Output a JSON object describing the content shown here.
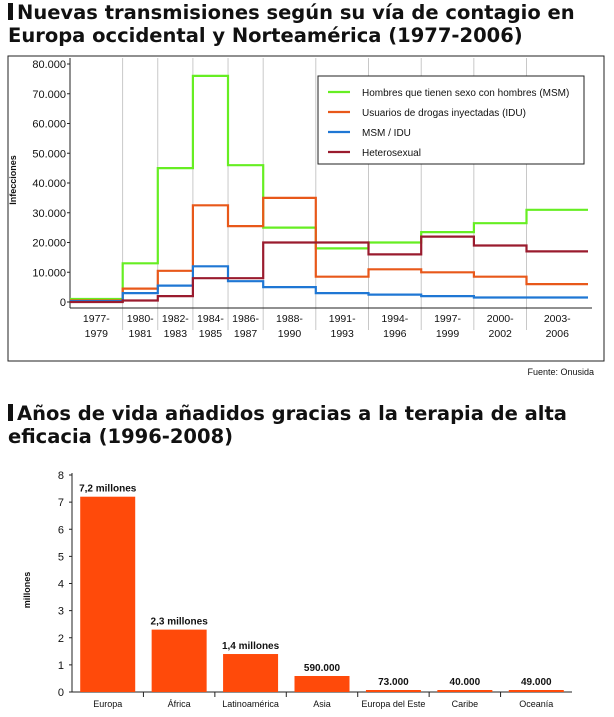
{
  "title1": "Nuevas transmisiones según su vía de contagio en Europa occidental y Norteamérica (1977-2006)",
  "source": "Fuente: Onusida",
  "title2": "Años de vida añadidos gracias a la terapia de alta eficacia (1996-2008)",
  "colors": {
    "msm": "#66ee22",
    "idu": "#e8581a",
    "msmidu": "#1f77d4",
    "hetero": "#9a1b2e",
    "bar": "#ff4a0a"
  },
  "chart_data": [
    {
      "type": "line",
      "step": true,
      "title": "Nuevas transmisiones según su vía de contagio en Europa occidental y Norteamérica (1977-2006)",
      "ylabel": "Infecciones",
      "ylim": [
        0,
        80000
      ],
      "yticks": [
        0,
        10000,
        20000,
        30000,
        40000,
        50000,
        60000,
        70000,
        80000
      ],
      "ytick_labels": [
        "0",
        "10.000",
        "20.000",
        "30.000",
        "40.000",
        "50.000",
        "60.000",
        "70.000",
        "80.000"
      ],
      "categories": [
        [
          "1977-",
          "1979"
        ],
        [
          "1980-",
          "1981"
        ],
        [
          "1982-",
          "1983"
        ],
        [
          "1984-",
          "1985"
        ],
        [
          "1986-",
          "1987"
        ],
        [
          "1988-",
          "1990"
        ],
        [
          "1991-",
          "1993"
        ],
        [
          "1994-",
          "1996"
        ],
        [
          "1997-",
          "1999"
        ],
        [
          "2000-",
          "2002"
        ],
        [
          "2003-",
          "2006"
        ]
      ],
      "boundaries": [
        1977,
        1980,
        1982,
        1984,
        1986,
        1988,
        1991,
        1994,
        1997,
        2000,
        2003,
        2006.5
      ],
      "series": [
        {
          "name": "Hombres que tienen sexo con hombres (MSM)",
          "color_key": "msm",
          "values": [
            1000,
            13000,
            45000,
            76000,
            46000,
            25000,
            18000,
            20000,
            23500,
            26500,
            31000
          ]
        },
        {
          "name": "Usuarios de drogas inyectadas (IDU)",
          "color_key": "idu",
          "values": [
            500,
            4500,
            10500,
            32500,
            25500,
            35000,
            8500,
            11000,
            10000,
            8500,
            6000
          ]
        },
        {
          "name": "MSM / IDU",
          "color_key": "msmidu",
          "values": [
            300,
            3000,
            5500,
            12000,
            7000,
            5000,
            3000,
            2500,
            2000,
            1500,
            1500
          ]
        },
        {
          "name": "Heterosexual",
          "color_key": "hetero",
          "values": [
            0,
            500,
            2000,
            8000,
            8000,
            20000,
            20000,
            16000,
            22000,
            19000,
            17000
          ]
        }
      ],
      "legend_position": "top-right"
    },
    {
      "type": "bar",
      "title": "Años de vida añadidos gracias a la terapia de alta eficacia (1996-2008)",
      "ylabel": "millones",
      "ylim": [
        0,
        8
      ],
      "yticks": [
        0,
        1,
        2,
        3,
        4,
        5,
        6,
        7,
        8
      ],
      "ytick_labels": [
        "0",
        "1",
        "2",
        "3",
        "4",
        "5",
        "6",
        "7",
        "8"
      ],
      "categories": [
        "Europa",
        "África",
        "Latinoamérica",
        "Asia",
        "Europa del Este",
        "Caribe",
        "Oceanía"
      ],
      "values": [
        7.2,
        2.3,
        1.4,
        0.59,
        0.073,
        0.04,
        0.049
      ],
      "value_labels": [
        "7,2 millones",
        "2,3 millones",
        "1,4 millones",
        "590.000",
        "73.000",
        "40.000",
        "49.000"
      ]
    }
  ]
}
